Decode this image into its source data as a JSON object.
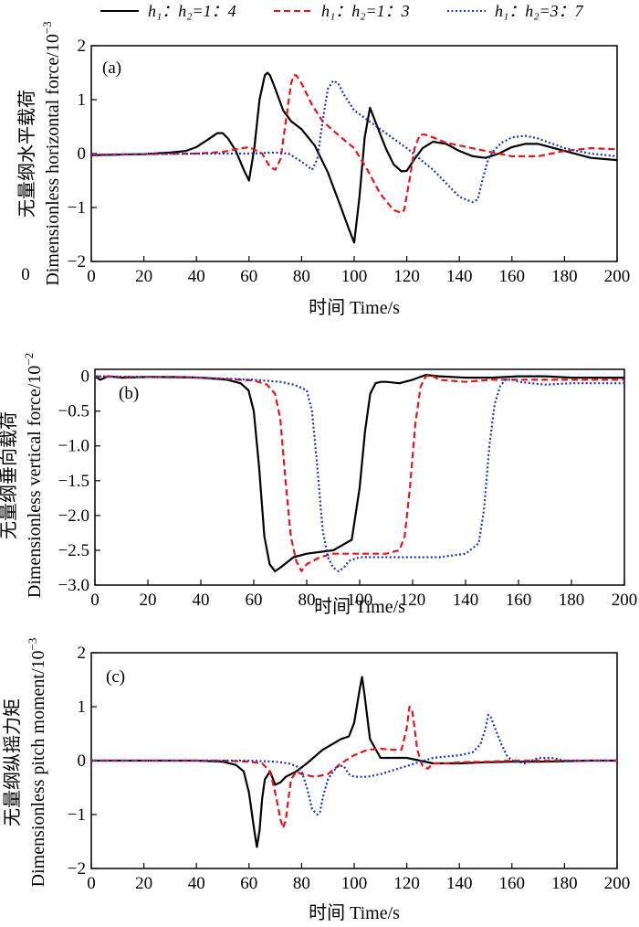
{
  "legend": {
    "items": [
      {
        "label": "h₁：h₂=1：4",
        "color": "#000000",
        "dash": "solid"
      },
      {
        "label": "h₁：h₂=1：3",
        "color": "#e8141b",
        "dash": "dashed"
      },
      {
        "label": "h₁：h₂=3：7",
        "color": "#1a35b8",
        "dash": "dotted"
      }
    ]
  },
  "chart_data": [
    {
      "type": "line",
      "panel_label": "(a)",
      "title": "",
      "xlabel": "时间 Time/s",
      "ylabel_cn": "无量纲水平载荷",
      "ylabel_en": "Dimensionless horizontal force/10",
      "ylabel_exp": "−3",
      "x_ticks": [
        "0",
        "20",
        "40",
        "60",
        "80",
        "100",
        "120",
        "140",
        "160",
        "180",
        "200"
      ],
      "y_ticks": [
        "2",
        "1",
        "0",
        "−1",
        "−2"
      ],
      "xlim": [
        0,
        200
      ],
      "ylim": [
        -2,
        2
      ],
      "extra_label": "0",
      "series": [
        {
          "name": "h1:h2=1:4",
          "x": [
            0,
            10,
            20,
            30,
            36,
            40,
            44,
            48,
            50,
            52,
            55,
            58,
            60,
            62,
            64,
            66,
            67,
            68,
            70,
            73,
            76,
            80,
            85,
            90,
            95,
            98,
            100,
            102,
            104,
            106,
            108,
            112,
            115,
            118,
            120,
            123,
            126,
            130,
            135,
            140,
            145,
            150,
            155,
            160,
            165,
            170,
            180,
            190,
            200
          ],
          "y": [
            -0.03,
            -0.02,
            -0.01,
            0.02,
            0.05,
            0.12,
            0.25,
            0.38,
            0.38,
            0.28,
            0.05,
            -0.3,
            -0.5,
            0.1,
            1.0,
            1.45,
            1.5,
            1.45,
            1.2,
            0.8,
            0.6,
            0.45,
            0.15,
            -0.35,
            -1.0,
            -1.4,
            -1.65,
            -0.8,
            0.3,
            0.85,
            0.6,
            0.1,
            -0.2,
            -0.33,
            -0.32,
            -0.1,
            0.1,
            0.22,
            0.18,
            0.05,
            -0.05,
            -0.08,
            0.0,
            0.12,
            0.18,
            0.18,
            0.05,
            -0.08,
            -0.12
          ]
        },
        {
          "name": "h1:h2=1:3",
          "x": [
            0,
            20,
            40,
            50,
            55,
            60,
            65,
            68,
            70,
            72,
            74,
            76,
            77,
            78,
            80,
            84,
            88,
            95,
            100,
            105,
            110,
            115,
            118,
            119,
            121,
            123,
            125,
            127,
            130,
            135,
            140,
            150,
            160,
            170,
            180,
            190,
            200
          ],
          "y": [
            -0.02,
            -0.01,
            0.0,
            0.03,
            0.08,
            0.12,
            0.0,
            -0.25,
            -0.3,
            -0.1,
            0.6,
            1.3,
            1.45,
            1.45,
            1.3,
            0.9,
            0.6,
            0.3,
            0.1,
            -0.3,
            -0.75,
            -1.05,
            -1.1,
            -1.05,
            -0.5,
            0.1,
            0.35,
            0.35,
            0.3,
            0.2,
            0.15,
            0.05,
            -0.05,
            -0.05,
            0.05,
            0.1,
            0.08
          ]
        },
        {
          "name": "h1:h2=3:7",
          "x": [
            0,
            20,
            40,
            60,
            70,
            75,
            80,
            84,
            86,
            88,
            90,
            92,
            94,
            96,
            100,
            110,
            120,
            130,
            135,
            140,
            145,
            147,
            149,
            151,
            153,
            156,
            160,
            165,
            170,
            180,
            190,
            200
          ],
          "y": [
            -0.02,
            -0.01,
            0.0,
            0.0,
            0.02,
            0.0,
            -0.15,
            -0.3,
            -0.1,
            0.6,
            1.2,
            1.35,
            1.3,
            1.1,
            0.8,
            0.45,
            0.1,
            -0.3,
            -0.55,
            -0.8,
            -0.9,
            -0.85,
            -0.45,
            -0.1,
            0.05,
            0.2,
            0.3,
            0.33,
            0.28,
            0.1,
            0.0,
            -0.05
          ]
        }
      ]
    },
    {
      "type": "line",
      "panel_label": "(b)",
      "title": "",
      "xlabel": "时间 Time/s",
      "ylabel_cn": "无量纲垂向载荷",
      "ylabel_en": "Dimensionless vertical force/10",
      "ylabel_exp": "−2",
      "x_ticks": [
        "0",
        "20",
        "40",
        "60",
        "80",
        "100",
        "120",
        "140",
        "160",
        "180",
        "200"
      ],
      "y_ticks": [
        "0",
        "−0.5",
        "−1.0",
        "−1.5",
        "−2.0",
        "−2.5",
        "−3.0"
      ],
      "xlim": [
        0,
        200
      ],
      "ylim": [
        -3,
        0.1
      ],
      "series": [
        {
          "name": "h1:h2=1:4",
          "x": [
            0,
            2,
            5,
            10,
            20,
            30,
            40,
            50,
            55,
            58,
            60,
            62,
            64,
            66,
            68,
            70,
            75,
            80,
            90,
            97,
            100,
            102,
            104,
            106,
            108,
            110,
            115,
            120,
            125,
            130,
            140,
            150,
            160,
            170,
            180,
            190,
            200
          ],
          "y": [
            0.0,
            -0.05,
            0.0,
            -0.02,
            -0.01,
            -0.01,
            -0.02,
            -0.05,
            -0.1,
            -0.2,
            -0.5,
            -1.3,
            -2.3,
            -2.7,
            -2.8,
            -2.75,
            -2.6,
            -2.55,
            -2.5,
            -2.35,
            -1.6,
            -0.8,
            -0.25,
            -0.1,
            -0.08,
            -0.08,
            -0.1,
            -0.05,
            0.02,
            0.0,
            -0.02,
            -0.02,
            0.0,
            0.0,
            -0.02,
            -0.02,
            -0.02
          ]
        },
        {
          "name": "h1:h2=1:3",
          "x": [
            0,
            10,
            20,
            40,
            60,
            65,
            68,
            70,
            72,
            74,
            76,
            78,
            80,
            85,
            90,
            100,
            110,
            115,
            117,
            119,
            121,
            123,
            125,
            127,
            130,
            140,
            150,
            160,
            170,
            180,
            190,
            200
          ],
          "y": [
            0.0,
            -0.01,
            -0.01,
            -0.02,
            -0.06,
            -0.12,
            -0.25,
            -0.6,
            -1.5,
            -2.3,
            -2.65,
            -2.8,
            -2.7,
            -2.6,
            -2.55,
            -2.55,
            -2.55,
            -2.5,
            -2.3,
            -1.6,
            -0.7,
            -0.15,
            0.0,
            0.02,
            -0.05,
            -0.08,
            -0.05,
            -0.05,
            -0.05,
            -0.05,
            -0.05,
            -0.05
          ]
        },
        {
          "name": "h1:h2=3:7",
          "x": [
            0,
            20,
            40,
            60,
            70,
            75,
            80,
            82,
            84,
            86,
            88,
            90,
            92,
            94,
            96,
            100,
            110,
            120,
            130,
            140,
            145,
            147,
            149,
            151,
            153,
            155,
            158,
            160,
            165,
            170,
            180,
            190,
            200
          ],
          "y": [
            0.0,
            -0.01,
            -0.02,
            -0.05,
            -0.08,
            -0.12,
            -0.2,
            -0.5,
            -1.3,
            -2.2,
            -2.6,
            -2.75,
            -2.8,
            -2.75,
            -2.65,
            -2.6,
            -2.6,
            -2.6,
            -2.6,
            -2.55,
            -2.4,
            -1.9,
            -1.0,
            -0.4,
            -0.15,
            -0.05,
            -0.05,
            -0.08,
            -0.1,
            -0.12,
            -0.1,
            -0.1,
            -0.1
          ]
        }
      ]
    },
    {
      "type": "line",
      "panel_label": "(c)",
      "title": "",
      "xlabel": "时间 Time/s",
      "ylabel_cn": "无量纲纵摇力矩",
      "ylabel_en": "Dimensionless pitch moment/10",
      "ylabel_exp": "−3",
      "x_ticks": [
        "0",
        "20",
        "40",
        "60",
        "80",
        "100",
        "120",
        "140",
        "160",
        "180",
        "200"
      ],
      "y_ticks": [
        "2",
        "1",
        "0",
        "−1",
        "−2"
      ],
      "xlim": [
        0,
        200
      ],
      "ylim": [
        -2,
        2
      ],
      "series": [
        {
          "name": "h1:h2=1:4",
          "x": [
            0,
            20,
            40,
            50,
            55,
            58,
            60,
            62,
            63,
            64,
            65,
            66,
            68,
            70,
            72,
            74,
            78,
            82,
            88,
            95,
            98,
            100,
            102,
            103,
            104,
            106,
            110,
            115,
            120,
            125,
            130,
            140,
            150,
            160,
            170,
            180,
            190,
            200
          ],
          "y": [
            0.0,
            0.0,
            0.0,
            -0.02,
            -0.08,
            -0.2,
            -0.6,
            -1.3,
            -1.6,
            -1.3,
            -0.7,
            -0.35,
            -0.2,
            -0.45,
            -0.4,
            -0.3,
            -0.2,
            -0.05,
            0.2,
            0.4,
            0.45,
            0.7,
            1.3,
            1.55,
            1.2,
            0.4,
            0.05,
            0.05,
            0.05,
            0.0,
            -0.05,
            -0.05,
            -0.03,
            -0.02,
            -0.02,
            -0.01,
            0.0,
            0.0
          ]
        },
        {
          "name": "h1:h2=1:3",
          "x": [
            0,
            20,
            40,
            50,
            60,
            65,
            68,
            70,
            72,
            73,
            74,
            75,
            76,
            78,
            80,
            85,
            90,
            95,
            100,
            105,
            110,
            115,
            118,
            120,
            121,
            122,
            123,
            124,
            126,
            128,
            130,
            135,
            140,
            150,
            160,
            170,
            180,
            190,
            200
          ],
          "y": [
            0.0,
            0.0,
            0.0,
            0.0,
            -0.02,
            -0.05,
            -0.2,
            -0.6,
            -1.1,
            -1.25,
            -1.1,
            -0.7,
            -0.35,
            -0.2,
            -0.25,
            -0.3,
            -0.25,
            -0.05,
            0.1,
            0.2,
            0.22,
            0.2,
            0.2,
            0.6,
            1.0,
            0.95,
            0.6,
            0.2,
            -0.1,
            -0.15,
            -0.05,
            -0.05,
            -0.03,
            -0.02,
            0.0,
            0.0,
            0.0,
            0.0,
            0.0
          ]
        },
        {
          "name": "h1:h2=3:7",
          "x": [
            0,
            20,
            40,
            60,
            70,
            75,
            78,
            80,
            82,
            84,
            86,
            87,
            88,
            90,
            92,
            94,
            96,
            98,
            100,
            105,
            110,
            120,
            130,
            140,
            145,
            148,
            150,
            151,
            152,
            154,
            156,
            158,
            160,
            165,
            170,
            175,
            180,
            190,
            200
          ],
          "y": [
            0.0,
            0.0,
            0.0,
            0.0,
            -0.02,
            -0.05,
            -0.1,
            -0.2,
            -0.5,
            -0.9,
            -1.0,
            -0.95,
            -0.7,
            -0.35,
            -0.2,
            -0.1,
            -0.1,
            -0.25,
            -0.3,
            -0.3,
            -0.25,
            -0.1,
            0.05,
            0.1,
            0.15,
            0.3,
            0.6,
            0.85,
            0.8,
            0.55,
            0.3,
            0.1,
            0.0,
            -0.05,
            0.05,
            0.05,
            0.0,
            0.0,
            0.0
          ]
        }
      ]
    }
  ]
}
